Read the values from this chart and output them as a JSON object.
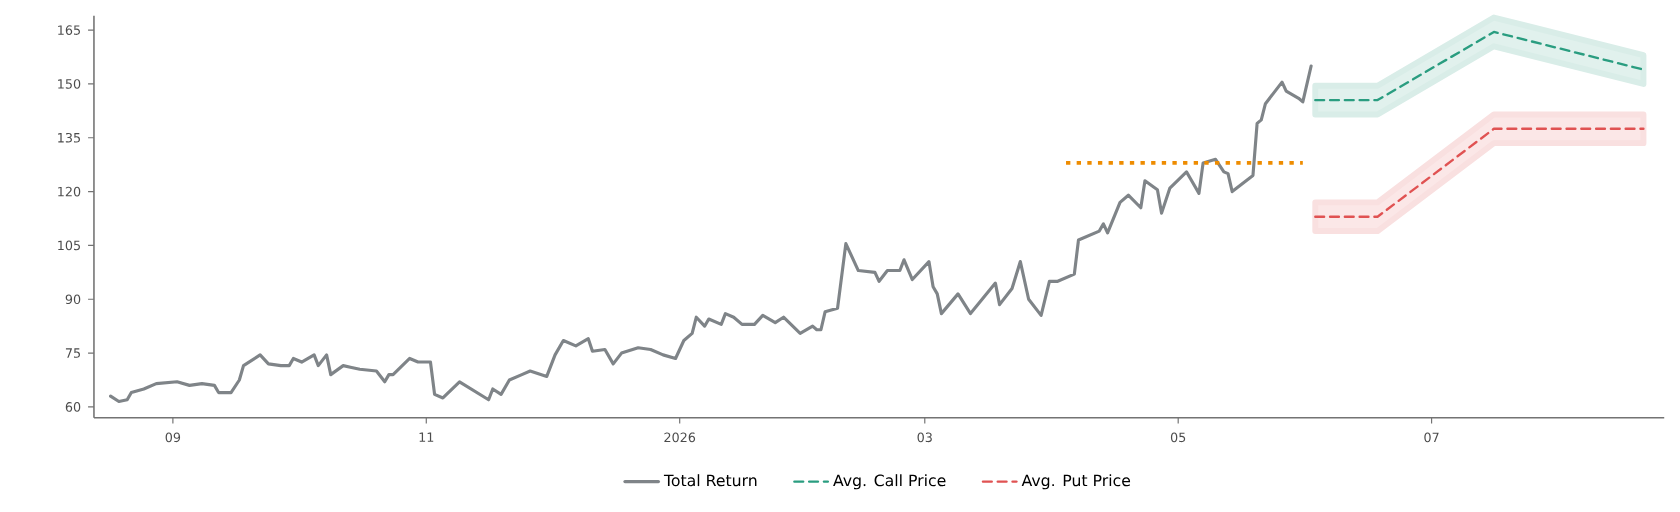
{
  "chart_data": {
    "type": "line",
    "xlim": [
      "2025-08-13",
      "2026-08-26"
    ],
    "xticks": [
      {
        "value": "2025-09-01",
        "label": "09"
      },
      {
        "value": "2025-11-01",
        "label": "11"
      },
      {
        "value": "2026-01-01",
        "label": "2026"
      },
      {
        "value": "2026-03-01",
        "label": "03"
      },
      {
        "value": "2026-05-01",
        "label": "05"
      },
      {
        "value": "2026-07-01",
        "label": "07"
      }
    ],
    "ylim": [
      57,
      169
    ],
    "yticks": [
      60,
      75,
      90,
      105,
      120,
      135,
      150,
      165
    ],
    "legend": "bottom",
    "series": [
      {
        "name": "Total Return",
        "color": "#7f8488",
        "line_style": "solid",
        "x": [
          "2025-08-17",
          "2025-08-19",
          "2025-08-21",
          "2025-08-22",
          "2025-08-25",
          "2025-08-28",
          "2025-09-02",
          "2025-09-05",
          "2025-09-08",
          "2025-09-11",
          "2025-09-12",
          "2025-09-15",
          "2025-09-17",
          "2025-09-18",
          "2025-09-22",
          "2025-09-24",
          "2025-09-27",
          "2025-09-29",
          "2025-09-30",
          "2025-10-02",
          "2025-10-05",
          "2025-10-06",
          "2025-10-08",
          "2025-10-09",
          "2025-10-12",
          "2025-10-14",
          "2025-10-16",
          "2025-10-20",
          "2025-10-22",
          "2025-10-23",
          "2025-10-24",
          "2025-10-28",
          "2025-10-30",
          "2025-11-02",
          "2025-11-03",
          "2025-11-05",
          "2025-11-09",
          "2025-11-16",
          "2025-11-17",
          "2025-11-19",
          "2025-11-21",
          "2025-11-24",
          "2025-11-26",
          "2025-11-30",
          "2025-12-02",
          "2025-12-04",
          "2025-12-07",
          "2025-12-10",
          "2025-12-11",
          "2025-12-14",
          "2025-12-16",
          "2025-12-18",
          "2025-12-22",
          "2025-12-25",
          "2025-12-28",
          "2025-12-31",
          "2026-01-02",
          "2026-01-04",
          "2026-01-05",
          "2026-01-07",
          "2026-01-08",
          "2026-01-11",
          "2026-01-12",
          "2026-01-14",
          "2026-01-16",
          "2026-01-19",
          "2026-01-21",
          "2026-01-24",
          "2026-01-26",
          "2026-01-30",
          "2026-02-02",
          "2026-02-03",
          "2026-02-04",
          "2026-02-05",
          "2026-02-08",
          "2026-02-10",
          "2026-02-13",
          "2026-02-17",
          "2026-02-18",
          "2026-02-20",
          "2026-02-23",
          "2026-02-24",
          "2026-02-26",
          "2026-03-02",
          "2026-03-03",
          "2026-03-04",
          "2026-03-05",
          "2026-03-09",
          "2026-03-12",
          "2026-03-18",
          "2026-03-19",
          "2026-03-22",
          "2026-03-24",
          "2026-03-26",
          "2026-03-29",
          "2026-03-31",
          "2026-04-02",
          "2026-04-06",
          "2026-04-07",
          "2026-04-12",
          "2026-04-13",
          "2026-04-14",
          "2026-04-17",
          "2026-04-19",
          "2026-04-22",
          "2026-04-23",
          "2026-04-26",
          "2026-04-27",
          "2026-04-29",
          "2026-05-03",
          "2026-05-04",
          "2026-05-06",
          "2026-05-07",
          "2026-05-10",
          "2026-05-12",
          "2026-05-13",
          "2026-05-14",
          "2026-05-19",
          "2026-05-20",
          "2026-05-21",
          "2026-05-22",
          "2026-05-26",
          "2026-05-27",
          "2026-05-30",
          "2026-05-31",
          "2026-06-02"
        ],
        "values": [
          63,
          61.5,
          62,
          64,
          65,
          66.5,
          67,
          66,
          66.5,
          66,
          64,
          64,
          67.5,
          71.5,
          74.5,
          72,
          71.5,
          71.5,
          73.5,
          72.5,
          74.5,
          71.5,
          74.5,
          69,
          71.5,
          71,
          70.5,
          70,
          67,
          69,
          69,
          73.5,
          72.5,
          72.5,
          63.5,
          62.5,
          67,
          62,
          65,
          63.5,
          67.5,
          69,
          70,
          68.5,
          74.5,
          78.5,
          77,
          79,
          75.5,
          76,
          72,
          75,
          76.5,
          76,
          74.5,
          73.5,
          78.5,
          80.5,
          85,
          82.5,
          84.5,
          83,
          86,
          85,
          83,
          83,
          85.5,
          83.5,
          85,
          80.5,
          82.5,
          81.5,
          81.5,
          86.5,
          87.5,
          105.5,
          98,
          97.5,
          95,
          98,
          98,
          101,
          95.5,
          100.5,
          93.5,
          91.5,
          86,
          91.5,
          86,
          94.5,
          88.5,
          93,
          100.5,
          90,
          85.5,
          95,
          95,
          97,
          106.5,
          109,
          111,
          108.5,
          117,
          119,
          115.5,
          123,
          120.5,
          114,
          121,
          125.5,
          123.5,
          119.5,
          128,
          129,
          125.5,
          125,
          120,
          124.5,
          139,
          140,
          144.5,
          150.5,
          148,
          146,
          145,
          155
        ]
      },
      {
        "name": "Avg. Call Price",
        "color": "#2a9d80",
        "line_style": "dashed",
        "x": [
          "2026-06-03",
          "2026-06-18",
          "2026-07-16",
          "2026-08-21"
        ],
        "values": [
          145.5,
          145.5,
          164.5,
          154
        ],
        "lower": [
          141.5,
          141.5,
          160.5,
          150
        ],
        "upper": [
          149.5,
          149.5,
          168.5,
          158
        ]
      },
      {
        "name": "Avg. Put Price",
        "color": "#e05252",
        "line_style": "dashed",
        "x": [
          "2026-06-03",
          "2026-06-18",
          "2026-07-16",
          "2026-08-21"
        ],
        "values": [
          113,
          113,
          137.5,
          137.5
        ],
        "lower": [
          109,
          109,
          133.5,
          133.5
        ],
        "upper": [
          117,
          117,
          141.5,
          141.5
        ]
      },
      {
        "color": "#ee8c00",
        "line_style": "dotted",
        "x": [
          "2026-04-04",
          "2026-05-31"
        ],
        "values": [
          128,
          128
        ]
      }
    ]
  }
}
